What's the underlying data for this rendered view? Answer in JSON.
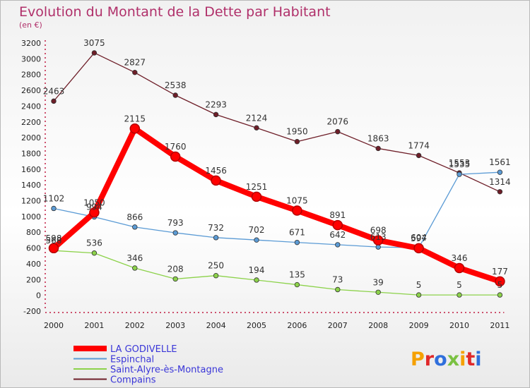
{
  "chart_data": {
    "type": "line",
    "title": "Evolution du Montant de la Dette par Habitant",
    "subtitle": "(en €)",
    "xlabel": "",
    "ylabel": "",
    "categories": [
      "2000",
      "2001",
      "2002",
      "2003",
      "2004",
      "2005",
      "2006",
      "2007",
      "2008",
      "2009",
      "2010",
      "2011"
    ],
    "ylim": [
      -200,
      3200
    ],
    "ytick_step": 200,
    "grid": false,
    "legend_position": "bottom-left",
    "series": [
      {
        "name": "Compains",
        "color": "#6e1e28",
        "values": [
          2463,
          3075,
          2827,
          2538,
          2293,
          2124,
          1950,
          2076,
          1863,
          1774,
          1553,
          1314
        ]
      },
      {
        "name": "Espinchal",
        "color": "#5b9bd5",
        "values": [
          1102,
          994,
          866,
          793,
          732,
          702,
          671,
          642,
          613,
          604,
          1535,
          1561
        ]
      },
      {
        "name": "Saint-Alyre-ès-Montagne",
        "color": "#8cd24a",
        "values": [
          568,
          536,
          346,
          208,
          250,
          194,
          135,
          73,
          39,
          5,
          5,
          5
        ]
      },
      {
        "name": "LA GODIVELLE",
        "color": "#ff0000",
        "values": [
          598,
          1050,
          2115,
          1760,
          1456,
          1251,
          1075,
          891,
          698,
          597,
          346,
          177
        ]
      }
    ]
  },
  "logo": {
    "text": "Proxiti"
  }
}
